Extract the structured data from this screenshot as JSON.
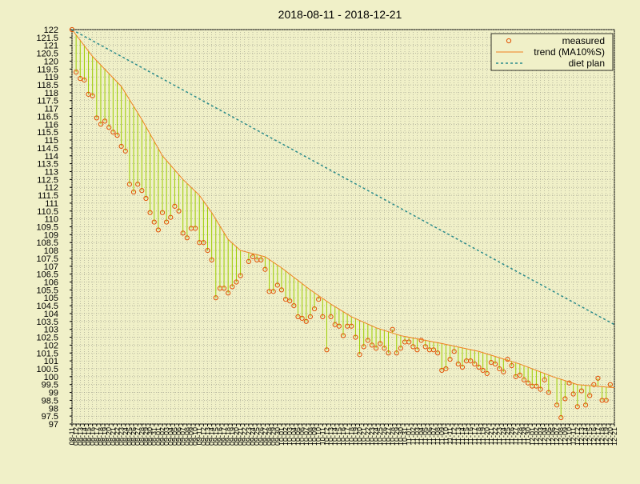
{
  "chart_data": {
    "type": "line",
    "title": "2018-08-11 - 2018-12-21",
    "x": [
      "08-11",
      "08-12",
      "08-13",
      "08-14",
      "08-15",
      "08-16",
      "08-17",
      "08-18",
      "08-19",
      "08-20",
      "08-21",
      "08-22",
      "08-23",
      "08-24",
      "08-25",
      "08-26",
      "08-27",
      "08-28",
      "08-29",
      "08-30",
      "08-31",
      "09-01",
      "09-02",
      "09-03",
      "09-04",
      "09-05",
      "09-06",
      "09-07",
      "09-08",
      "09-09",
      "09-10",
      "09-11",
      "09-12",
      "09-13",
      "09-14",
      "09-15",
      "09-16",
      "09-17",
      "09-18",
      "09-19",
      "09-20",
      "09-21",
      "09-22",
      "09-23",
      "09-24",
      "09-25",
      "09-26",
      "09-27",
      "09-28",
      "09-29",
      "09-30",
      "10-01",
      "10-02",
      "10-03",
      "10-04",
      "10-05",
      "10-06",
      "10-07",
      "10-08",
      "10-09",
      "10-10",
      "10-11",
      "10-12",
      "10-13",
      "10-14",
      "10-15",
      "10-16",
      "10-17",
      "10-18",
      "10-19",
      "10-20",
      "10-21",
      "10-22",
      "10-23",
      "10-24",
      "10-25",
      "10-26",
      "10-27",
      "10-28",
      "10-29",
      "10-30",
      "10-31",
      "11-01",
      "11-02",
      "11-03",
      "11-04",
      "11-05",
      "11-06",
      "11-07",
      "11-08",
      "11-09",
      "11-10",
      "11-11",
      "11-12",
      "11-13",
      "11-14",
      "11-15",
      "11-16",
      "11-17",
      "11-18",
      "11-19",
      "11-20",
      "11-21",
      "11-22",
      "11-23",
      "11-24",
      "11-25",
      "11-26",
      "11-27",
      "11-28",
      "11-29",
      "11-30",
      "12-01",
      "12-02",
      "12-03",
      "12-04",
      "12-05",
      "12-06",
      "12-07",
      "12-08",
      "12-09",
      "12-10",
      "12-11",
      "12-12",
      "12-13",
      "12-14",
      "12-15",
      "12-16",
      "12-17",
      "12-18",
      "12-19",
      "12-20",
      "12-21"
    ],
    "series": [
      {
        "name": "measured",
        "color": "#e05000",
        "style": "points",
        "values": [
          122.0,
          119.3,
          118.9,
          118.8,
          117.9,
          117.8,
          116.4,
          116.0,
          116.2,
          115.8,
          115.5,
          115.3,
          114.6,
          114.3,
          112.2,
          111.7,
          112.2,
          111.8,
          111.3,
          110.4,
          109.8,
          109.3,
          110.4,
          109.8,
          110.1,
          110.8,
          110.5,
          109.1,
          108.8,
          109.4,
          109.4,
          108.5,
          108.5,
          108.0,
          107.4,
          105.0,
          105.6,
          105.6,
          105.3,
          105.7,
          106.0,
          106.4,
          null,
          107.3,
          107.6,
          107.4,
          107.4,
          106.8,
          105.4,
          105.4,
          105.8,
          105.5,
          104.9,
          104.8,
          104.5,
          103.8,
          103.7,
          103.5,
          103.8,
          104.3,
          104.9,
          103.8,
          101.7,
          103.8,
          103.3,
          103.2,
          102.6,
          103.2,
          103.2,
          102.5,
          101.4,
          101.9,
          102.3,
          102.0,
          101.8,
          102.1,
          101.8,
          101.5,
          103.0,
          101.5,
          101.8,
          102.2,
          102.2,
          101.9,
          101.7,
          102.3,
          101.9,
          101.7,
          101.7,
          101.5,
          100.4,
          100.5,
          101.1,
          101.6,
          100.8,
          100.6,
          101.0,
          101.0,
          100.8,
          100.6,
          100.4,
          100.2,
          100.9,
          100.8,
          100.5,
          100.3,
          101.1,
          100.7,
          100.0,
          100.1,
          99.8,
          99.6,
          99.4,
          99.4,
          99.2,
          99.8,
          99.0,
          null,
          98.2,
          97.4,
          98.6,
          99.6,
          98.9,
          98.1,
          99.1,
          98.2,
          98.8,
          99.5,
          99.9,
          98.5,
          98.5,
          99.5,
          null
        ]
      },
      {
        "name": "trend (MA10%S)",
        "color": "#f08020",
        "style": "line",
        "x": [
          "08-11",
          "08-16",
          "08-23",
          "08-28",
          "09-02",
          "09-07",
          "09-11",
          "09-14",
          "09-18",
          "09-21",
          "09-27",
          "10-01",
          "10-08",
          "10-13",
          "10-18",
          "10-24",
          "10-30",
          "11-09",
          "11-18",
          "11-28",
          "12-06",
          "12-12",
          "12-21"
        ],
        "values": [
          122.0,
          120.3,
          118.4,
          116.3,
          114.0,
          112.5,
          111.5,
          110.4,
          108.7,
          108.0,
          107.6,
          106.9,
          105.5,
          104.6,
          103.8,
          103.1,
          102.6,
          102.1,
          101.6,
          100.8,
          100.0,
          99.5,
          99.3
        ]
      },
      {
        "name": "diet plan",
        "color": "#2a8a8a",
        "style": "dashed",
        "x": [
          "08-11",
          "12-21"
        ],
        "values": [
          122,
          103.3
        ]
      }
    ],
    "drop_line_color": "#99cc00",
    "ylim": [
      97,
      122
    ],
    "yticks": [
      97,
      97.5,
      98,
      98.5,
      99,
      99.5,
      100,
      100.5,
      101,
      101.5,
      102,
      102.5,
      103,
      103.5,
      104,
      104.5,
      105,
      105.5,
      106,
      106.5,
      107,
      107.5,
      108,
      108.5,
      109,
      109.5,
      110,
      110.5,
      111,
      111.5,
      112,
      112.5,
      113,
      113.5,
      114,
      114.5,
      115,
      115.5,
      116,
      116.5,
      117,
      117.5,
      118,
      118.5,
      119,
      119.5,
      120,
      120.5,
      121,
      121.5,
      122
    ],
    "grid": true,
    "legend": "top-right"
  }
}
